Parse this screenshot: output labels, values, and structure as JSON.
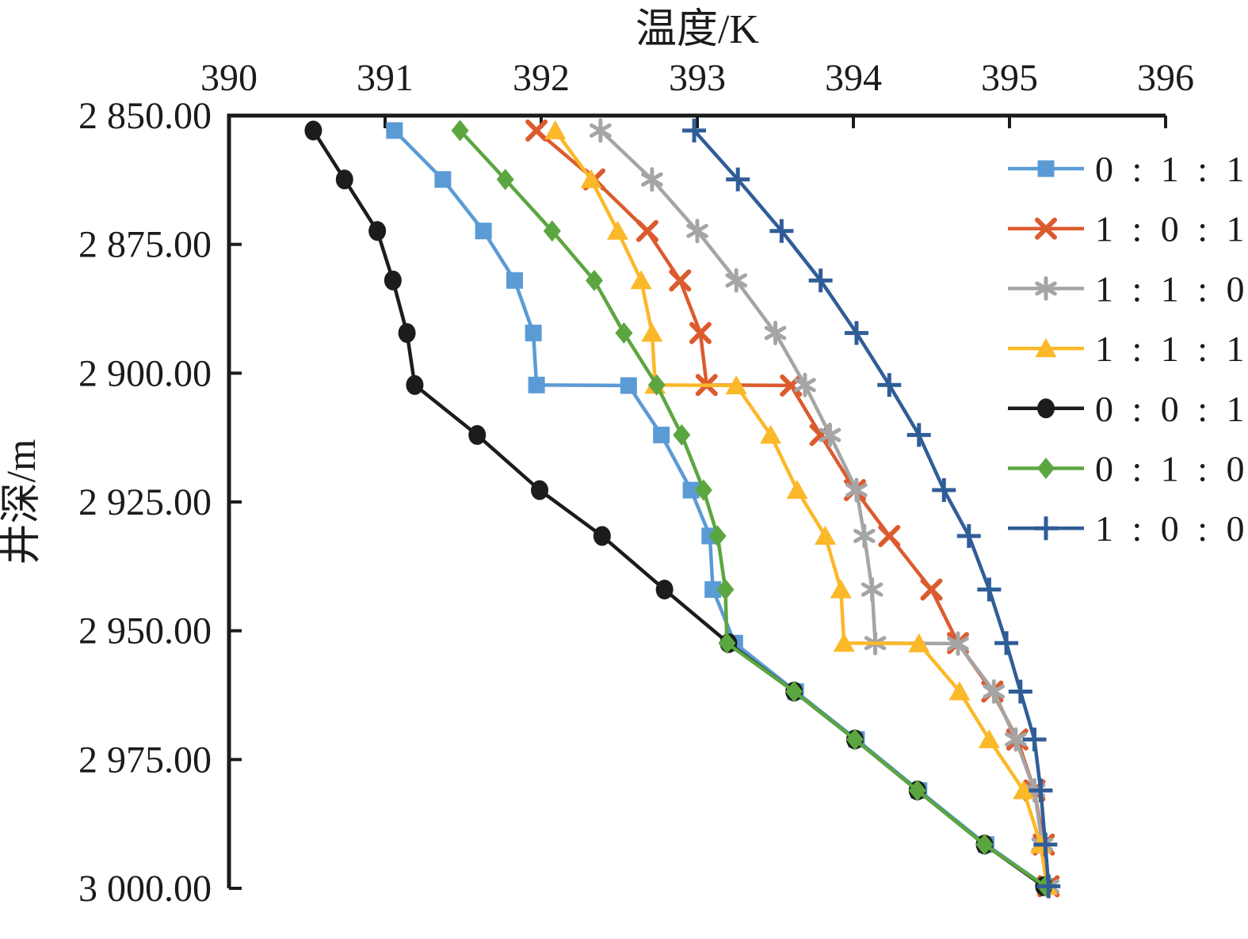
{
  "figure": {
    "x_axis_title": "温度/K",
    "y_axis_title": "井深/m"
  },
  "chart_data": {
    "type": "line",
    "title": "",
    "xlabel": "温度/K",
    "ylabel": "井深/m",
    "x_axis": {
      "position": "top",
      "min": 390,
      "max": 396,
      "ticks": [
        390,
        391,
        392,
        393,
        394,
        395,
        396
      ]
    },
    "y_axis": {
      "position": "left",
      "inverted": true,
      "min": 2850,
      "max": 3000,
      "tick_values": [
        2850,
        2875,
        2900,
        2925,
        2950,
        2975,
        3000
      ],
      "tick_labels": [
        "2 850.00",
        "2 875.00",
        "2 900.00",
        "2 925.00",
        "2 950.00",
        "2 975.00",
        "3 000.00"
      ]
    },
    "grid": false,
    "legend_position": "inside-right",
    "series": [
      {
        "name": "0 : 1 : 1",
        "color": "#5B9BD5",
        "marker": "square",
        "points": [
          [
            391.06,
            2852.9
          ],
          [
            391.37,
            2862.4
          ],
          [
            391.63,
            2872.4
          ],
          [
            391.83,
            2882.0
          ],
          [
            391.95,
            2892.2
          ],
          [
            391.97,
            2902.3
          ],
          [
            392.56,
            2902.4
          ],
          [
            392.77,
            2912.0
          ],
          [
            392.96,
            2922.7
          ],
          [
            393.08,
            2931.6
          ],
          [
            393.1,
            2942.0
          ],
          [
            393.24,
            2952.4
          ],
          [
            393.63,
            2961.8
          ],
          [
            394.02,
            2971.1
          ],
          [
            394.42,
            2981.0
          ],
          [
            394.85,
            2991.5
          ],
          [
            395.23,
            2999.6
          ]
        ]
      },
      {
        "name": "1 : 0 : 1",
        "color": "#DC5B2E",
        "marker": "x",
        "points": [
          [
            391.97,
            2852.9
          ],
          [
            392.34,
            2862.4
          ],
          [
            392.68,
            2872.4
          ],
          [
            392.89,
            2882.0
          ],
          [
            393.02,
            2892.2
          ],
          [
            393.06,
            2902.3
          ],
          [
            393.6,
            2902.4
          ],
          [
            393.79,
            2912.0
          ],
          [
            394.01,
            2922.7
          ],
          [
            394.23,
            2931.6
          ],
          [
            394.5,
            2942.0
          ],
          [
            394.67,
            2952.4
          ],
          [
            394.89,
            2961.8
          ],
          [
            395.05,
            2971.1
          ],
          [
            395.16,
            2981.0
          ],
          [
            395.22,
            2991.5
          ],
          [
            395.25,
            2999.6
          ]
        ]
      },
      {
        "name": "1 : 1 : 0",
        "color": "#A5A5A5",
        "marker": "asterisk",
        "points": [
          [
            392.38,
            2852.9
          ],
          [
            392.71,
            2862.4
          ],
          [
            393.0,
            2872.4
          ],
          [
            393.25,
            2882.0
          ],
          [
            393.5,
            2892.2
          ],
          [
            393.69,
            2902.3
          ],
          [
            393.85,
            2912.0
          ],
          [
            394.02,
            2922.7
          ],
          [
            394.07,
            2931.6
          ],
          [
            394.12,
            2942.0
          ],
          [
            394.14,
            2952.4
          ],
          [
            394.67,
            2952.5
          ],
          [
            394.9,
            2961.8
          ],
          [
            395.04,
            2971.1
          ],
          [
            395.16,
            2981.0
          ],
          [
            395.21,
            2991.5
          ],
          [
            395.25,
            2999.6
          ]
        ]
      },
      {
        "name": "1 : 1 : 1",
        "color": "#FBB829",
        "marker": "triangle",
        "points": [
          [
            392.09,
            2852.9
          ],
          [
            392.32,
            2862.4
          ],
          [
            392.49,
            2872.4
          ],
          [
            392.64,
            2882.0
          ],
          [
            392.71,
            2892.2
          ],
          [
            392.73,
            2902.3
          ],
          [
            393.25,
            2902.4
          ],
          [
            393.47,
            2912.0
          ],
          [
            393.64,
            2922.7
          ],
          [
            393.82,
            2931.6
          ],
          [
            393.92,
            2942.0
          ],
          [
            393.94,
            2952.4
          ],
          [
            394.42,
            2952.5
          ],
          [
            394.68,
            2961.8
          ],
          [
            394.87,
            2971.1
          ],
          [
            395.09,
            2981.0
          ],
          [
            395.2,
            2991.5
          ],
          [
            395.24,
            2999.6
          ]
        ]
      },
      {
        "name": "0 : 0 : 1",
        "color": "#1C1C1C",
        "marker": "circle",
        "points": [
          [
            390.54,
            2852.9
          ],
          [
            390.74,
            2862.4
          ],
          [
            390.95,
            2872.4
          ],
          [
            391.05,
            2882.0
          ],
          [
            391.14,
            2892.2
          ],
          [
            391.19,
            2902.3
          ],
          [
            391.59,
            2912.0
          ],
          [
            391.99,
            2922.7
          ],
          [
            392.39,
            2931.6
          ],
          [
            392.79,
            2942.0
          ],
          [
            393.2,
            2952.4
          ],
          [
            393.62,
            2961.8
          ],
          [
            394.01,
            2971.1
          ],
          [
            394.41,
            2981.0
          ],
          [
            394.84,
            2991.5
          ],
          [
            395.22,
            2999.6
          ]
        ]
      },
      {
        "name": "0 : 1 : 0",
        "color": "#5BA640",
        "marker": "diamond",
        "points": [
          [
            391.48,
            2852.9
          ],
          [
            391.77,
            2862.4
          ],
          [
            392.07,
            2872.4
          ],
          [
            392.34,
            2882.0
          ],
          [
            392.53,
            2892.2
          ],
          [
            392.74,
            2902.3
          ],
          [
            392.9,
            2912.0
          ],
          [
            393.04,
            2922.7
          ],
          [
            393.13,
            2931.6
          ],
          [
            393.18,
            2942.0
          ],
          [
            393.19,
            2952.4
          ],
          [
            393.62,
            2961.8
          ],
          [
            394.01,
            2971.1
          ],
          [
            394.41,
            2981.0
          ],
          [
            394.84,
            2991.5
          ],
          [
            395.23,
            2999.6
          ]
        ]
      },
      {
        "name": "1 : 0 : 0",
        "color": "#305D97",
        "marker": "plus",
        "points": [
          [
            392.98,
            2852.9
          ],
          [
            393.26,
            2862.4
          ],
          [
            393.54,
            2872.4
          ],
          [
            393.79,
            2882.0
          ],
          [
            394.02,
            2892.2
          ],
          [
            394.23,
            2902.3
          ],
          [
            394.42,
            2912.0
          ],
          [
            394.58,
            2922.7
          ],
          [
            394.74,
            2931.6
          ],
          [
            394.87,
            2942.0
          ],
          [
            394.98,
            2952.4
          ],
          [
            395.07,
            2961.8
          ],
          [
            395.16,
            2971.1
          ],
          [
            395.2,
            2981.0
          ],
          [
            395.23,
            2991.5
          ],
          [
            395.25,
            2999.6
          ]
        ]
      }
    ]
  }
}
